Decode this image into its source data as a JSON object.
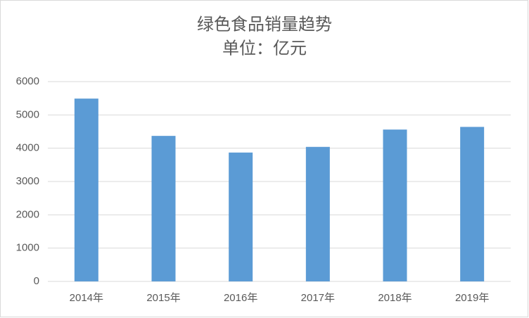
{
  "chart_data": {
    "type": "bar",
    "title": "绿色食品销量趋势",
    "subtitle": "单位：亿元",
    "categories": [
      "2014年",
      "2015年",
      "2016年",
      "2017年",
      "2018年",
      "2019年"
    ],
    "values": [
      5490,
      4370,
      3870,
      4040,
      4560,
      4640
    ],
    "color": "#5b9bd5",
    "ylim": [
      0,
      6000
    ],
    "yticks": [
      0,
      1000,
      2000,
      3000,
      4000,
      5000,
      6000
    ],
    "grid": true
  }
}
